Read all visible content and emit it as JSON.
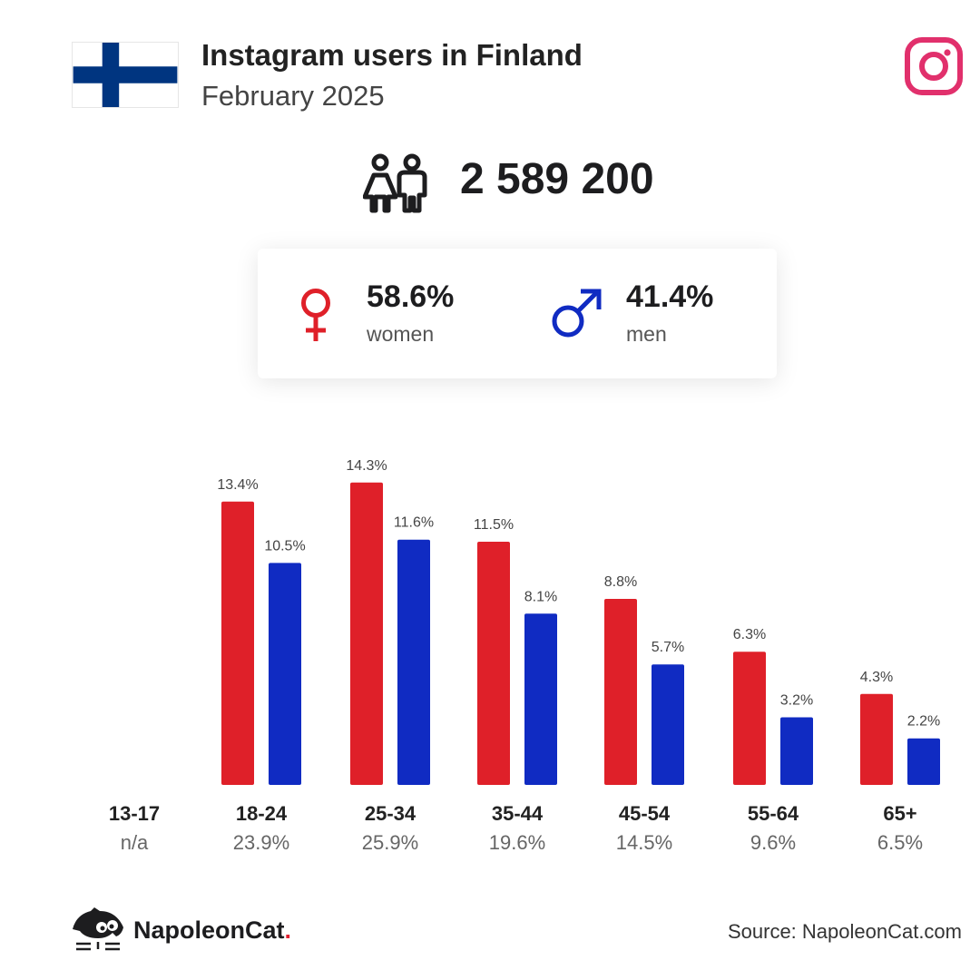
{
  "header": {
    "title": "Instagram users in Finland",
    "subtitle": "February 2025"
  },
  "total": {
    "value": "2 589 200"
  },
  "gender": {
    "women": {
      "percent": "58.6%",
      "label": "women"
    },
    "men": {
      "percent": "41.4%",
      "label": "men"
    }
  },
  "colors": {
    "women": "#df2029",
    "men": "#102bc2",
    "instagram": "#e1306c",
    "flag_blue": "#003580"
  },
  "chart_data": {
    "type": "bar",
    "title": "",
    "categories": [
      "13-17",
      "18-24",
      "25-34",
      "35-44",
      "45-54",
      "55-64",
      "65+"
    ],
    "category_totals": [
      "n/a",
      "23.9%",
      "25.9%",
      "19.6%",
      "14.5%",
      "9.6%",
      "6.5%"
    ],
    "series": [
      {
        "name": "women",
        "values": [
          null,
          13.4,
          14.3,
          11.5,
          8.8,
          6.3,
          4.3
        ],
        "labels": [
          "",
          "13.4%",
          "14.3%",
          "11.5%",
          "8.8%",
          "6.3%",
          "4.3%"
        ]
      },
      {
        "name": "men",
        "values": [
          null,
          10.5,
          11.6,
          8.1,
          5.7,
          3.2,
          2.2
        ],
        "labels": [
          "",
          "10.5%",
          "11.6%",
          "8.1%",
          "5.7%",
          "3.2%",
          "2.2%"
        ]
      }
    ],
    "ylim": [
      0,
      15
    ],
    "grid": false,
    "legend": "none"
  },
  "footer": {
    "brand": "NapoleonCat",
    "brand_dot": ".",
    "source": "Source: NapoleonCat.com"
  }
}
